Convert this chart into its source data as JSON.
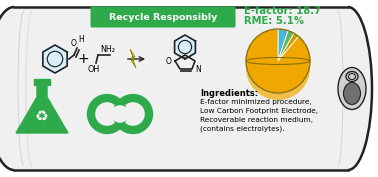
{
  "title": "Recycle Responsibly",
  "title_bg": "#2eaa4a",
  "title_text_color": "white",
  "efactor_text": "E-factor: 18.7",
  "rme_text": "RME: 5.1%",
  "efactor_color": "#2eaa4a",
  "ingredients_title": "Ingredients:",
  "ingredients_lines": [
    "E-factor minimized procedure,",
    "Low Carbon Footprint Electrode,",
    "Recoverable reaction medium,",
    "(contains electrolytes)."
  ],
  "pie_values": [
    5.1,
    3.2,
    2.8,
    88.9
  ],
  "pie_colors": [
    "#4ab8d4",
    "#5cb85c",
    "#c8a000",
    "#f0a800"
  ],
  "pie_edge_color": "#8B7000",
  "can_body_color": "#f0f0f0",
  "can_outline_color": "#222222",
  "green_color": "#2eaa4a",
  "background_color": "white",
  "fig_w": 3.78,
  "fig_h": 1.77,
  "dpi": 100
}
